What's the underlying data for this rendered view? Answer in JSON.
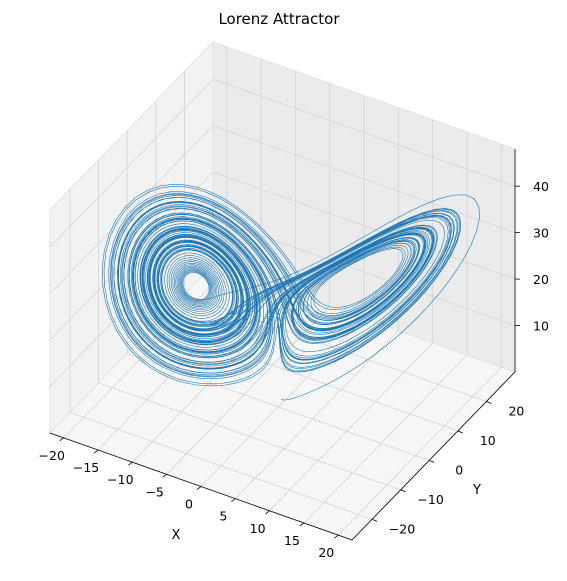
{
  "chart_data": {
    "type": "line",
    "projection": "3d",
    "title": "Lorenz Attractor",
    "xlabel": "X",
    "ylabel": "Y",
    "zlabel": "",
    "xlim": [
      -22,
      22
    ],
    "ylim": [
      -27,
      30
    ],
    "zlim": [
      0,
      48
    ],
    "x_ticks": [
      "−20",
      "−15",
      "−10",
      "−5",
      "0",
      "5",
      "10",
      "15",
      "20"
    ],
    "y_ticks": [
      "−20",
      "−10",
      "0",
      "10",
      "20"
    ],
    "z_ticks": [
      "10",
      "20",
      "30",
      "40"
    ],
    "grid": true,
    "series": [
      {
        "system": "lorenz",
        "parameters": {
          "sigma": 10,
          "rho": 28,
          "beta": 2.6667
        },
        "initial_state": [
          0.0,
          1.0,
          1.05
        ],
        "steps": 10000,
        "dt": 0.01,
        "color": "#1f77b4"
      }
    ]
  },
  "colors": {
    "line": "#1f77b4",
    "pane_side": "#f2f2f2",
    "pane_back": "#ebebeb",
    "pane_floor": "#f6f6f6",
    "grid": "#d3d3d3"
  }
}
